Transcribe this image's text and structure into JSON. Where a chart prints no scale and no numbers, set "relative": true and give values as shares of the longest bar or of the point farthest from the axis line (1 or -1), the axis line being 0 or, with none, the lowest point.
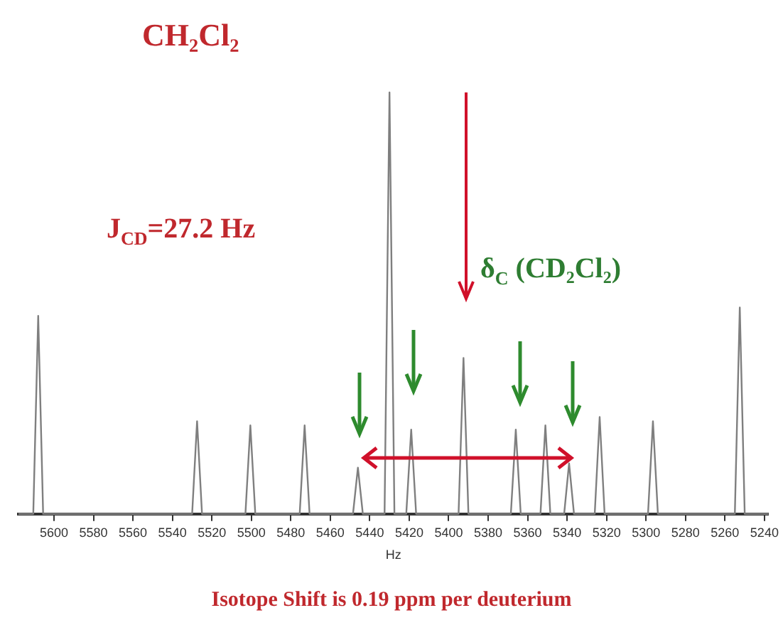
{
  "chart_data": {
    "type": "line",
    "title": "CH₂Cl₂",
    "xlabel": "Hz",
    "relative": true,
    "annotations": [
      "J$_{CD}$=27.2 Hz",
      "δ$_{C}$ (CD₂Cl₂)",
      "Isotope Shift is 0.19 ppm per deuterium"
    ],
    "x": [
      5618,
      5610.5,
      5608,
      5605.5,
      5530,
      5527.5,
      5525,
      5503,
      5500.5,
      5498,
      5475.5,
      5473,
      5470.5,
      5448.5,
      5446,
      5443.5,
      5432.5,
      5430,
      5427.5,
      5421.5,
      5419,
      5416.5,
      5395,
      5392.5,
      5390,
      5368.5,
      5366,
      5363.5,
      5353.5,
      5351,
      5348.5,
      5341.5,
      5339,
      5336.5,
      5326,
      5323.5,
      5321,
      5299,
      5296.5,
      5294,
      5255,
      5252.5,
      5250,
      5238
    ],
    "series": [
      {
        "color": "#7f7f7f",
        "values": [
          0,
          0,
          0.47,
          0,
          0,
          0.22,
          0,
          0,
          0.21,
          0,
          0,
          0.21,
          0,
          0,
          0.11,
          0,
          0,
          1,
          0,
          0,
          0.2,
          0,
          0,
          0.37,
          0,
          0,
          0.2,
          0,
          0,
          0.21,
          0,
          0,
          0.12,
          0,
          0,
          0.23,
          0,
          0,
          0.22,
          0,
          0,
          0.49,
          0,
          0
        ]
      }
    ],
    "xlim": [
      5618,
      5238
    ],
    "xticks": [
      5600,
      5580,
      5560,
      5540,
      5520,
      5500,
      5480,
      5460,
      5440,
      5420,
      5400,
      5380,
      5360,
      5340,
      5320,
      5300,
      5280,
      5260,
      5240
    ],
    "grid": false,
    "legend": false,
    "marker": "none",
    "line_style": "solid"
  }
}
